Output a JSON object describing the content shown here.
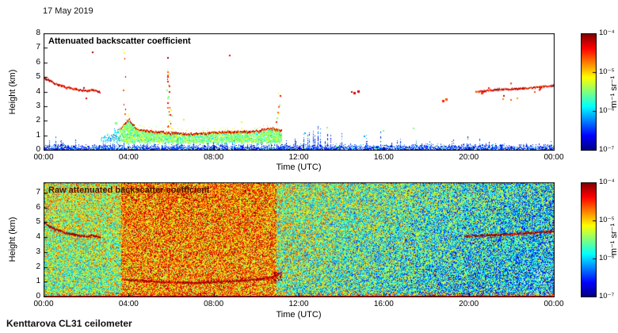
{
  "figure": {
    "date": "17 May 2019",
    "instrument": "Kenttarova CL31 ceilometer"
  },
  "chart_data": [
    {
      "type": "heatmap",
      "name": "attenuated_backscatter",
      "title": "Attenuated backscatter coefficient",
      "xlabel": "Time (UTC)",
      "ylabel": "Height (km)",
      "x_ticks": [
        "00:00",
        "04:00",
        "08:00",
        "12:00",
        "16:00",
        "20:00",
        "00:00"
      ],
      "x_range_hours": [
        0,
        24
      ],
      "ylim": [
        0,
        8
      ],
      "y_ticks": [
        0,
        1,
        2,
        3,
        4,
        5,
        6,
        7,
        8
      ],
      "grid": false,
      "colorbar": {
        "colormap": "jet",
        "scale": "log",
        "min": 1e-07,
        "max": 0.0001,
        "ticks": [
          "10⁻⁴",
          "10⁻⁵",
          "10⁻⁶",
          "10⁻⁷"
        ],
        "unit": "m⁻¹ sr⁻¹"
      },
      "features": {
        "surface_noise_band": {
          "km": [
            0,
            0.5
          ],
          "color": "blue"
        },
        "cloud_line_morning": {
          "points": [
            [
              0,
              4.95
            ],
            [
              0.5,
              4.55
            ],
            [
              1.0,
              4.3
            ],
            [
              1.5,
              4.15
            ],
            [
              2.0,
              4.05
            ],
            [
              2.3,
              4.12
            ],
            [
              2.65,
              3.95
            ]
          ]
        },
        "aerosol_layer": {
          "hours": [
            2.55,
            11.2
          ],
          "base_km": 0.5,
          "top_points": [
            [
              3.6,
              1.5
            ],
            [
              4.0,
              2.15
            ],
            [
              4.35,
              1.45
            ],
            [
              5,
              1.3
            ],
            [
              6,
              1.18
            ],
            [
              7,
              1.1
            ],
            [
              8,
              1.22
            ],
            [
              9,
              1.28
            ],
            [
              10,
              1.32
            ],
            [
              10.7,
              1.5
            ],
            [
              11.2,
              1.35
            ]
          ]
        },
        "cloud_line_evening": {
          "points": [
            [
              20.3,
              4.0
            ],
            [
              21.5,
              4.15
            ],
            [
              22.5,
              4.2
            ],
            [
              23.2,
              4.3
            ],
            [
              24,
              4.4
            ]
          ]
        },
        "streaks": [
          {
            "hour": 5.85,
            "km": [
              1.6,
              7.0
            ],
            "count": 22
          },
          {
            "hour": 3.78,
            "km": [
              2.2,
              7.0
            ],
            "count": 8
          },
          {
            "hour": 5.97,
            "km": [
              1.5,
              3.6
            ],
            "count": 7
          },
          {
            "hour": 11.05,
            "km": [
              1.8,
              4.2
            ],
            "count": 6
          }
        ],
        "dots": [
          [
            2.3,
            6.7,
            0.97
          ],
          [
            8.75,
            6.45,
            0.88
          ],
          [
            14.5,
            4.0,
            0.95
          ],
          [
            14.62,
            3.93,
            0.9
          ],
          [
            14.78,
            4.05,
            0.93
          ],
          [
            18.8,
            3.38,
            0.85
          ],
          [
            18.95,
            3.5,
            0.8
          ],
          [
            21.6,
            3.5,
            0.75
          ],
          [
            22.0,
            3.42,
            0.78
          ],
          [
            22.3,
            3.55,
            0.72
          ],
          [
            17.4,
            1.45,
            0.5
          ],
          [
            11.0,
            2.2,
            0.5
          ],
          [
            11.1,
            3.05,
            0.48
          ],
          [
            10.95,
            1.9,
            0.85
          ],
          [
            13.35,
            1.55,
            0.5
          ],
          [
            16.0,
            1.3,
            0.48
          ],
          [
            20.6,
            3.9,
            0.82
          ],
          [
            23.1,
            3.97,
            0.8
          ],
          [
            3.4,
            1.85,
            0.5
          ],
          [
            6.6,
            2.05,
            0.55
          ],
          [
            9.3,
            1.9,
            0.6
          ],
          [
            12.3,
            1.15,
            0.3
          ],
          [
            15.1,
            0.95,
            0.28
          ]
        ]
      }
    },
    {
      "type": "heatmap",
      "name": "raw_attenuated_backscatter",
      "title": "Raw attenuated backscatter coefficient",
      "xlabel": "Time (UTC)",
      "ylabel": "Height (km)",
      "x_ticks": [
        "00:00",
        "04:00",
        "08:00",
        "12:00",
        "16:00",
        "20:00",
        "00:00"
      ],
      "x_range_hours": [
        0,
        24
      ],
      "ylim": [
        0,
        7.7
      ],
      "y_ticks": [
        0,
        1,
        2,
        3,
        4,
        5,
        6,
        7
      ],
      "grid": false,
      "colorbar": {
        "colormap": "jet",
        "scale": "log",
        "min": 1e-07,
        "max": 0.0001,
        "ticks": [
          "10⁻⁴",
          "10⁻⁵",
          "10⁻⁶",
          "10⁻⁷"
        ],
        "unit": "m⁻¹ sr⁻¹"
      },
      "features": {
        "noise_regions": [
          {
            "hours": [
              0,
              3.65
            ],
            "level": 0.54,
            "jitter": 0.54,
            "height_gain": 0.1,
            "red_speck_prob": 0.02
          },
          {
            "hours": [
              3.65,
              10.95
            ],
            "level": 0.73,
            "jitter": 0.5,
            "height_gain": 0.04,
            "red_speck_prob": 0.04
          },
          {
            "hours": [
              10.95,
              24
            ],
            "level": [
              0.52,
              0.32
            ],
            "jitter": 0.6,
            "height_gain": 0.08,
            "red_speck_prob": 0.012
          }
        ],
        "cloud_line_morning": {
          "points": [
            [
              0,
              4.95
            ],
            [
              0.5,
              4.55
            ],
            [
              1.0,
              4.3
            ],
            [
              1.5,
              4.15
            ],
            [
              2.0,
              4.05
            ],
            [
              2.3,
              4.12
            ],
            [
              2.65,
              3.95
            ]
          ]
        },
        "aerosol_line": {
          "points": [
            [
              3.8,
              1.15
            ],
            [
              4.5,
              1.05
            ],
            [
              5.5,
              0.98
            ],
            [
              6.5,
              0.92
            ],
            [
              7.5,
              0.95
            ],
            [
              8.5,
              1.0
            ],
            [
              9.5,
              1.08
            ],
            [
              10.3,
              1.2
            ],
            [
              10.9,
              1.35
            ]
          ]
        },
        "aerosol_end_blob": {
          "hours": [
            10.8,
            11.15
          ],
          "km": [
            1.1,
            1.75
          ]
        },
        "cloud_line_evening": {
          "points": [
            [
              19.8,
              4.05
            ],
            [
              21,
              4.15
            ],
            [
              22,
              4.2
            ],
            [
              23,
              4.3
            ],
            [
              24,
              4.4
            ]
          ]
        },
        "surface_line_km": 0.1
      }
    }
  ]
}
